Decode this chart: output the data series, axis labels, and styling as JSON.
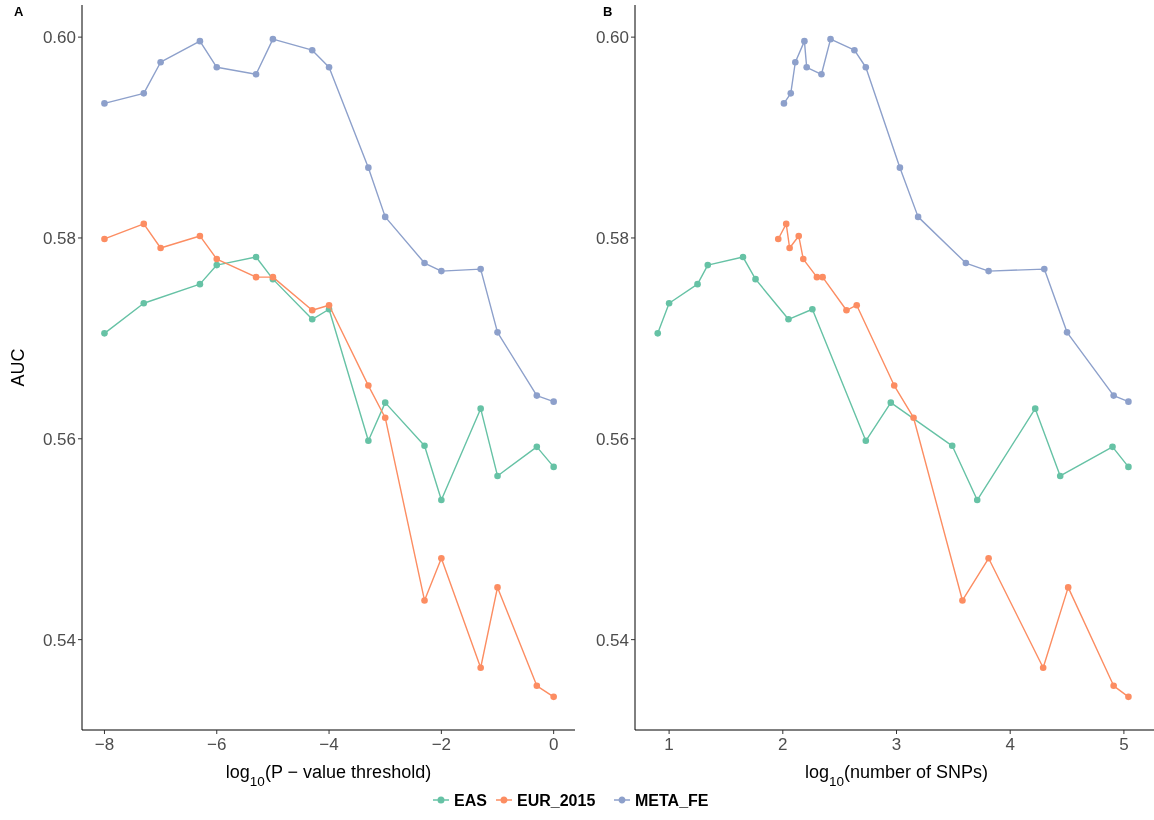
{
  "chart_data": [
    {
      "type": "line",
      "title": "A",
      "xlabel": "log$_{10}$(P − value threshold)",
      "ylabel": "AUC",
      "xlim": [
        -8.4,
        0.38
      ],
      "xticks": [
        {
          "value": -8,
          "label": "−8"
        },
        {
          "value": -6,
          "label": "−6"
        },
        {
          "value": -4,
          "label": "−4"
        },
        {
          "value": -2,
          "label": "−2"
        },
        0
      ],
      "ylim": [
        0.531,
        0.6032
      ],
      "yticks": [
        {
          "value": 0.54,
          "label": "0.54"
        },
        {
          "value": 0.56,
          "label": "0.56"
        },
        {
          "value": 0.58,
          "label": "0.58"
        },
        {
          "value": 0.6,
          "label": "0.60"
        }
      ],
      "grid": false,
      "legend": "bottom",
      "marker": "circle",
      "line_style": "solid",
      "series": [
        {
          "name": "EAS",
          "color": "#66c2a5",
          "x": [
            -8,
            -7.3,
            -6.3,
            -6,
            -5.3,
            -5,
            -4.3,
            -4,
            -3.3,
            -3,
            -2.3,
            -2,
            -1.3,
            -1,
            -0.3,
            0
          ],
          "values": [
            0.5705,
            0.5735,
            0.5754,
            0.5773,
            0.5781,
            0.5759,
            0.5719,
            0.5729,
            0.5598,
            0.5636,
            0.5593,
            0.5539,
            0.563,
            0.5563,
            0.5592,
            0.5572
          ]
        },
        {
          "name": "EUR_2015",
          "color": "#fc8d62",
          "x": [
            -8,
            -7.3,
            -7,
            -6.3,
            -6,
            -5.3,
            -5,
            -4.3,
            -4,
            -3.3,
            -3,
            -2.3,
            -2,
            -1.3,
            -1,
            -0.3,
            0
          ],
          "values": [
            0.5799,
            0.5814,
            0.579,
            0.5802,
            0.5779,
            0.5761,
            0.5761,
            0.5728,
            0.5733,
            0.5653,
            0.5621,
            0.5439,
            0.5481,
            0.5372,
            0.5452,
            0.5354,
            0.5343
          ]
        },
        {
          "name": "META_FE",
          "color": "#8da0cb",
          "x": [
            -8,
            -7.3,
            -7,
            -6.3,
            -6,
            -5.3,
            -5,
            -4.3,
            -4,
            -3.3,
            -3,
            -2.3,
            -2,
            -1.3,
            -1,
            -0.3,
            0
          ],
          "values": [
            0.5934,
            0.5944,
            0.5975,
            0.5996,
            0.597,
            0.5963,
            0.5998,
            0.5987,
            0.597,
            0.587,
            0.5821,
            0.5775,
            0.5767,
            0.5769,
            0.5706,
            0.5643,
            0.5637
          ]
        }
      ]
    },
    {
      "type": "line",
      "title": "B",
      "xlabel": "log$_{10}$(number of SNPs)",
      "xlim": [
        0.7,
        5.3
      ],
      "xticks": [
        1,
        2,
        3,
        4,
        5
      ],
      "ylim": [
        0.531,
        0.6032
      ],
      "yticks": [
        {
          "value": 0.54,
          "label": "0.54"
        },
        {
          "value": 0.56,
          "label": "0.56"
        },
        {
          "value": 0.58,
          "label": "0.58"
        },
        {
          "value": 0.6,
          "label": "0.60"
        }
      ],
      "grid": false,
      "legend": "bottom",
      "marker": "circle",
      "line_style": "solid",
      "series": [
        {
          "name": "EAS",
          "color": "#66c2a5",
          "x": [
            0.9,
            1.0,
            1.25,
            1.34,
            1.65,
            1.76,
            2.05,
            2.26,
            2.73,
            2.95,
            3.49,
            3.71,
            4.22,
            4.44,
            4.9,
            5.04
          ],
          "values": [
            0.5705,
            0.5735,
            0.5754,
            0.5773,
            0.5781,
            0.5759,
            0.5719,
            0.5729,
            0.5598,
            0.5636,
            0.5593,
            0.5539,
            0.563,
            0.5563,
            0.5592,
            0.5572
          ]
        },
        {
          "name": "EUR_2015",
          "color": "#fc8d62",
          "x": [
            1.96,
            2.03,
            2.06,
            2.14,
            2.18,
            2.3,
            2.35,
            2.56,
            2.65,
            2.98,
            3.15,
            3.58,
            3.81,
            4.29,
            4.51,
            4.91,
            5.04
          ],
          "values": [
            0.5799,
            0.5814,
            0.579,
            0.5802,
            0.5779,
            0.5761,
            0.5761,
            0.5728,
            0.5733,
            0.5653,
            0.5621,
            0.5439,
            0.5481,
            0.5372,
            0.5452,
            0.5354,
            0.5343
          ]
        },
        {
          "name": "META_FE",
          "color": "#8da0cb",
          "x": [
            2.01,
            2.07,
            2.11,
            2.19,
            2.21,
            2.34,
            2.42,
            2.63,
            2.73,
            3.03,
            3.19,
            3.61,
            3.81,
            4.3,
            4.5,
            4.91,
            5.04
          ],
          "values": [
            0.5934,
            0.5944,
            0.5975,
            0.5996,
            0.597,
            0.5963,
            0.5998,
            0.5987,
            0.597,
            0.587,
            0.5821,
            0.5775,
            0.5767,
            0.5769,
            0.5706,
            0.5643,
            0.5637
          ]
        }
      ]
    }
  ]
}
